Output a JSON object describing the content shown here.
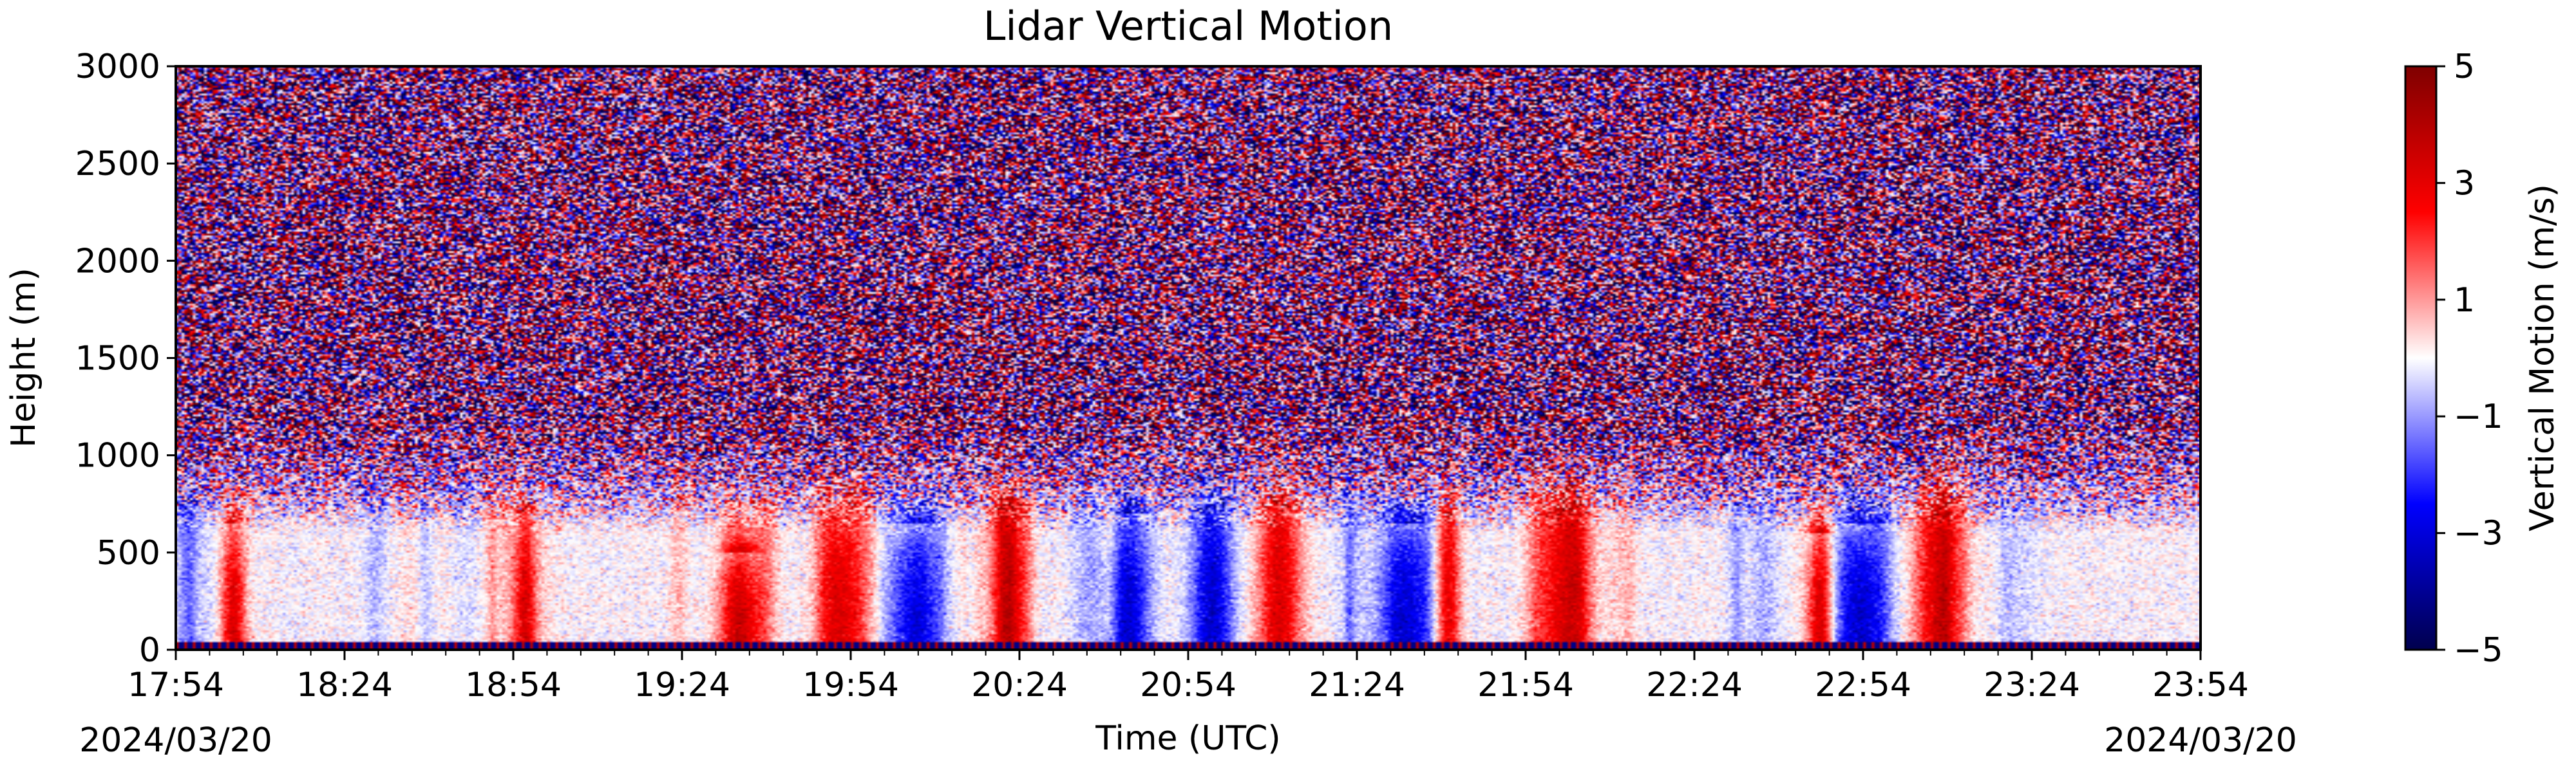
{
  "chart_data": {
    "type": "heatmap",
    "title": "Lidar Vertical Motion",
    "xlabel": "Time (UTC)",
    "ylabel": "Height (m)",
    "colorbar_label": "Vertical Motion (m/s)",
    "colormap": "seismic",
    "colormap_stops": [
      "#00004d",
      "#0000ff",
      "#ffffff",
      "#ff0000",
      "#7f0000"
    ],
    "x_range": [
      "17:54",
      "23:54"
    ],
    "x_ticks": [
      "17:54",
      "18:24",
      "18:54",
      "19:24",
      "19:54",
      "20:24",
      "20:54",
      "21:24",
      "21:54",
      "22:24",
      "22:54",
      "23:24",
      "23:54"
    ],
    "date_start": "2024/03/20",
    "date_end": "2024/03/20",
    "ylim": [
      0,
      3000
    ],
    "y_ticks": [
      0,
      500,
      1000,
      1500,
      2000,
      2500,
      3000
    ],
    "clim": [
      -5,
      5
    ],
    "colorbar_ticks": [
      5,
      3,
      1,
      -1,
      -3,
      -5
    ],
    "colorbar_tick_labels": [
      "5",
      "3",
      "1",
      "−1",
      "−3",
      "−5"
    ],
    "grid": false,
    "boundary_layer_top_m": 750,
    "noise_region_above_m": 1000,
    "near_surface_band_m": 40,
    "features": [
      {
        "time": "18:04",
        "sign": "up",
        "top_m": 650
      },
      {
        "time": "18:56",
        "sign": "up",
        "top_m": 700
      },
      {
        "time": "19:34",
        "sign": "up",
        "top_m": 500
      },
      {
        "time": "19:52",
        "sign": "up",
        "top_m": 800
      },
      {
        "time": "20:05",
        "sign": "down",
        "top_m": 650
      },
      {
        "time": "20:22",
        "sign": "up",
        "top_m": 1000
      },
      {
        "time": "20:43",
        "sign": "down",
        "top_m": 700
      },
      {
        "time": "20:58",
        "sign": "down",
        "top_m": 850
      },
      {
        "time": "21:10",
        "sign": "up",
        "top_m": 1000
      },
      {
        "time": "21:32",
        "sign": "down",
        "top_m": 650
      },
      {
        "time": "21:40",
        "sign": "up",
        "top_m": 1050
      },
      {
        "time": "22:01",
        "sign": "up",
        "top_m": 1050
      },
      {
        "time": "22:53",
        "sign": "down",
        "top_m": 650
      },
      {
        "time": "22:46",
        "sign": "up",
        "top_m": 600
      },
      {
        "time": "23:07",
        "sign": "up",
        "top_m": 1200
      }
    ]
  }
}
